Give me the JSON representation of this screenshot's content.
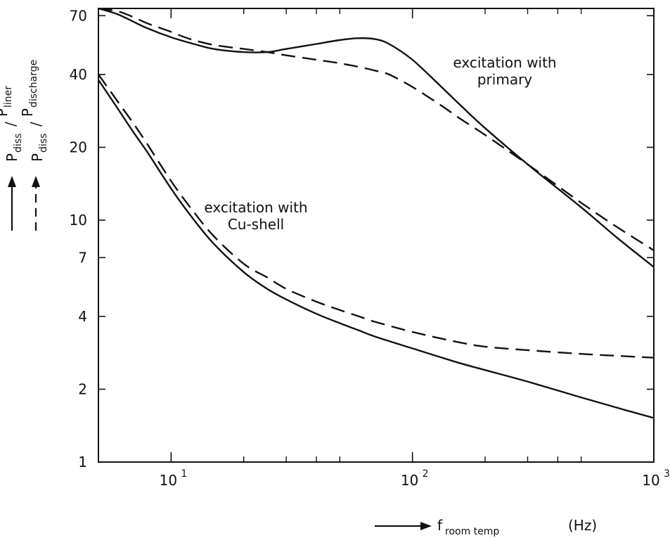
{
  "chart_data": {
    "type": "line",
    "x_scale": "log",
    "y_scale": "log",
    "xlim": [
      5,
      1000
    ],
    "ylim": [
      1,
      75
    ],
    "grid": false,
    "legend": "none",
    "x_ticks": [
      {
        "value": 10,
        "base": "10",
        "exp": "1"
      },
      {
        "value": 100,
        "base": "10",
        "exp": "2"
      },
      {
        "value": 1000,
        "base": "10",
        "exp": "3"
      }
    ],
    "y_ticks": [
      {
        "value": 1,
        "label": "1"
      },
      {
        "value": 2,
        "label": "2"
      },
      {
        "value": 4,
        "label": "4"
      },
      {
        "value": 7,
        "label": "7"
      },
      {
        "value": 10,
        "label": "10"
      },
      {
        "value": 20,
        "label": "20"
      },
      {
        "value": 40,
        "label": "40"
      },
      {
        "value": 70,
        "label": "70"
      }
    ],
    "xlabel": {
      "main": "f",
      "sub": "room temp",
      "unit": "(Hz)"
    },
    "ylabel": {
      "solid": {
        "main": "P",
        "sub1": "diss",
        "sep": "/",
        "main2": "P",
        "sub2": "liner"
      },
      "dashed": {
        "main": "P",
        "sub1": "diss",
        "sep": "/",
        "main2": "P",
        "sub2": "discharge"
      }
    },
    "annotations": [
      {
        "lines": [
          "excitation with",
          "primary"
        ],
        "x": 250,
        "y": 48
      },
      {
        "lines": [
          "excitation with",
          "Cu-shell"
        ],
        "x": 40,
        "y": 11.5
      }
    ],
    "series": [
      {
        "style": "solid",
        "group": "primary",
        "x": [
          5,
          6,
          7,
          8,
          10,
          12,
          15,
          20,
          25,
          30,
          40,
          50,
          60,
          70,
          80,
          100,
          130,
          160,
          200,
          300,
          500,
          700,
          1000
        ],
        "y": [
          75,
          71,
          66,
          62,
          57,
          54,
          51,
          49.5,
          49.5,
          51,
          53.5,
          55.5,
          56.5,
          56,
          53.5,
          46,
          36,
          29.5,
          24,
          17,
          11.3,
          8.5,
          6.4
        ]
      },
      {
        "style": "dashed",
        "group": "primary",
        "x": [
          5,
          6,
          7,
          8,
          10,
          12,
          15,
          20,
          25,
          30,
          40,
          50,
          60,
          70,
          80,
          100,
          130,
          160,
          200,
          300,
          500,
          700,
          1000
        ],
        "y": [
          75,
          73,
          69,
          65,
          60,
          56,
          53,
          51,
          49.5,
          48,
          46,
          44.5,
          43,
          41.5,
          40,
          35.5,
          30,
          26,
          22.5,
          17,
          11.8,
          9.4,
          7.5
        ]
      },
      {
        "style": "solid",
        "group": "cu-shell",
        "x": [
          5,
          6,
          7,
          8,
          10,
          12,
          15,
          20,
          25,
          30,
          40,
          50,
          60,
          70,
          100,
          150,
          200,
          300,
          500,
          700,
          1000
        ],
        "y": [
          38,
          29,
          23,
          19,
          13.5,
          10.5,
          8,
          6.1,
          5.2,
          4.7,
          4.1,
          3.75,
          3.5,
          3.3,
          2.95,
          2.6,
          2.4,
          2.15,
          1.85,
          1.68,
          1.52
        ]
      },
      {
        "style": "dashed",
        "group": "cu-shell",
        "x": [
          5,
          6,
          7,
          8,
          10,
          12,
          15,
          20,
          25,
          30,
          40,
          50,
          60,
          70,
          100,
          150,
          200,
          300,
          500,
          700,
          1000
        ],
        "y": [
          40,
          31,
          25,
          20.5,
          14.5,
          11.3,
          8.6,
          6.6,
          5.8,
          5.2,
          4.6,
          4.25,
          4.0,
          3.8,
          3.45,
          3.15,
          3.0,
          2.9,
          2.8,
          2.75,
          2.7
        ]
      }
    ]
  }
}
